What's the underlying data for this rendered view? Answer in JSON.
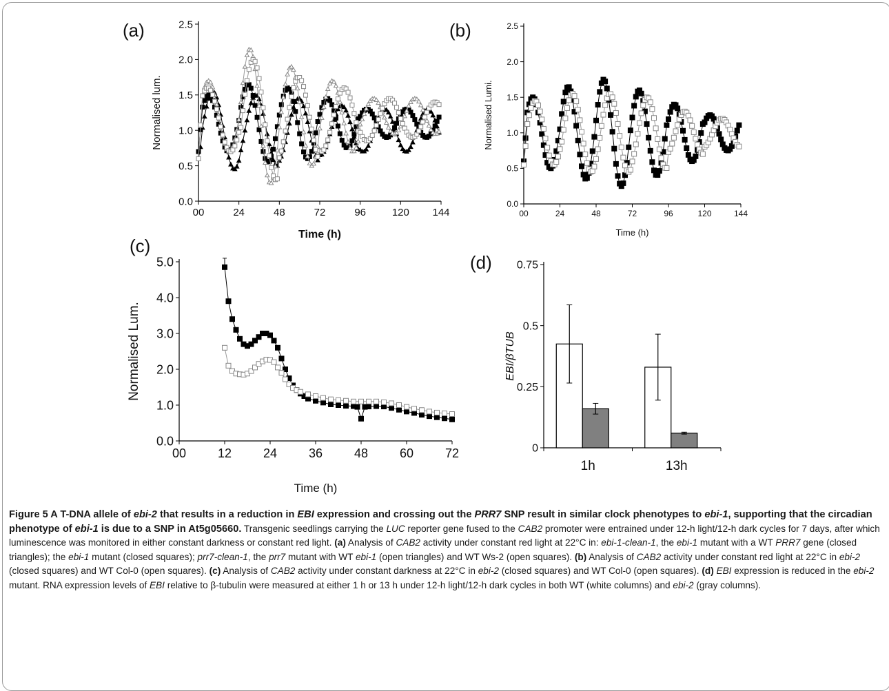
{
  "figure": {
    "caption": {
      "label": "Figure 5",
      "title_parts": [
        {
          "t": " A T-DNA allele of ",
          "i": false
        },
        {
          "t": "ebi-2",
          "i": true
        },
        {
          "t": " that results in a reduction in ",
          "i": false
        },
        {
          "t": "EBI",
          "i": true
        },
        {
          "t": " expression and crossing out the ",
          "i": false
        },
        {
          "t": "PRR7",
          "i": true
        },
        {
          "t": " SNP result in similar clock phenotypes to ",
          "i": false
        },
        {
          "t": "ebi-1",
          "i": true
        },
        {
          "t": ", supporting that the circadian phenotype of ",
          "i": false
        },
        {
          "t": "ebi-1",
          "i": true
        },
        {
          "t": " is due to a SNP in At5g05660",
          "i": false
        },
        {
          "t": ".",
          "i": false
        }
      ],
      "body_parts": [
        {
          "t": " Transgenic seedlings carrying the ",
          "i": false,
          "b": false
        },
        {
          "t": "LUC",
          "i": true,
          "b": false
        },
        {
          "t": " reporter gene fused to the ",
          "i": false,
          "b": false
        },
        {
          "t": "CAB2",
          "i": true,
          "b": false
        },
        {
          "t": " promoter were entrained under 12-h light/12-h dark cycles for 7 days, after which luminescence was monitored in either constant darkness or constant red light. ",
          "i": false,
          "b": false
        },
        {
          "t": "(a)",
          "i": false,
          "b": true
        },
        {
          "t": " Analysis of ",
          "i": false,
          "b": false
        },
        {
          "t": "CAB2",
          "i": true,
          "b": false
        },
        {
          "t": " activity under constant red light at 22°C in: ",
          "i": false,
          "b": false
        },
        {
          "t": "ebi-1-clean-1",
          "i": true,
          "b": false
        },
        {
          "t": ", the ",
          "i": false,
          "b": false
        },
        {
          "t": "ebi-1",
          "i": true,
          "b": false
        },
        {
          "t": " mutant with a WT ",
          "i": false,
          "b": false
        },
        {
          "t": "PRR7",
          "i": true,
          "b": false
        },
        {
          "t": " gene (closed triangles); the ",
          "i": false,
          "b": false
        },
        {
          "t": "ebi-1",
          "i": true,
          "b": false
        },
        {
          "t": " mutant (closed squares); ",
          "i": false,
          "b": false
        },
        {
          "t": "prr7-clean-1",
          "i": true,
          "b": false
        },
        {
          "t": ", the ",
          "i": false,
          "b": false
        },
        {
          "t": "prr7",
          "i": true,
          "b": false
        },
        {
          "t": " mutant with WT ",
          "i": false,
          "b": false
        },
        {
          "t": "ebi-1",
          "i": true,
          "b": false
        },
        {
          "t": " (open triangles) and WT Ws-2 (open squares). ",
          "i": false,
          "b": false
        },
        {
          "t": "(b)",
          "i": false,
          "b": true
        },
        {
          "t": " Analysis of ",
          "i": false,
          "b": false
        },
        {
          "t": "CAB2",
          "i": true,
          "b": false
        },
        {
          "t": " activity under constant red light at 22°C in ",
          "i": false,
          "b": false
        },
        {
          "t": "ebi-2",
          "i": true,
          "b": false
        },
        {
          "t": " (closed squares) and WT Col-0 (open squares). ",
          "i": false,
          "b": false
        },
        {
          "t": "(c)",
          "i": false,
          "b": true
        },
        {
          "t": " Analysis of ",
          "i": false,
          "b": false
        },
        {
          "t": "CAB2",
          "i": true,
          "b": false
        },
        {
          "t": " activity under constant darkness at 22°C in ",
          "i": false,
          "b": false
        },
        {
          "t": "ebi-2",
          "i": true,
          "b": false
        },
        {
          "t": " (closed squares) and WT Col-0 (open squares). ",
          "i": false,
          "b": false
        },
        {
          "t": "(d)",
          "i": false,
          "b": true
        },
        {
          "t": " ",
          "i": false,
          "b": false
        },
        {
          "t": "EBI",
          "i": true,
          "b": false
        },
        {
          "t": " expression is reduced in the ",
          "i": false,
          "b": false
        },
        {
          "t": "ebi-2",
          "i": true,
          "b": false
        },
        {
          "t": " mutant. RNA expression levels of ",
          "i": false,
          "b": false
        },
        {
          "t": "EBI",
          "i": true,
          "b": false
        },
        {
          "t": " relative to β-tubulin were measured at either 1 h or 13 h under 12-h light/12-h dark cycles in both WT (white columns) and ",
          "i": false,
          "b": false
        },
        {
          "t": "ebi-2",
          "i": true,
          "b": false
        },
        {
          "t": " (gray columns).",
          "i": false,
          "b": false
        }
      ]
    }
  },
  "chart_data": [
    {
      "panel": "(a)",
      "type": "scatter",
      "ylabel": "Normalised lum.",
      "xlabel": "Time (h)",
      "xticks": [
        "00",
        "24",
        "48",
        "72",
        "96",
        "120",
        "144"
      ],
      "yticks": [
        "0.0",
        "0.5",
        "1.0",
        "1.5",
        "2.0",
        "2.5"
      ],
      "xlim": [
        0,
        144
      ],
      "ylim": [
        0,
        2.5
      ],
      "series": [
        {
          "marker": "closed-triangle",
          "period": 25.5,
          "phase": 8.5,
          "base": 1.0,
          "amp": [
            0.55,
            0.5,
            0.45,
            0.35,
            0.3,
            0.3
          ],
          "start": 0.6
        },
        {
          "marker": "closed-square",
          "period": 23.5,
          "phase": 6.0,
          "base": 1.1,
          "amp": [
            0.4,
            0.55,
            0.5,
            0.35,
            0.2,
            0.2
          ],
          "start": 0.7
        },
        {
          "marker": "open-triangle",
          "period": 24.5,
          "phase": 6.0,
          "base": 1.2,
          "amp": [
            0.5,
            0.95,
            0.7,
            0.5,
            0.25,
            0.25
          ],
          "start": 0.6
        },
        {
          "marker": "open-square",
          "period": 27.0,
          "phase": 5.5,
          "base": 1.15,
          "amp": [
            0.45,
            0.85,
            0.6,
            0.45,
            0.3,
            0.25
          ],
          "start": 0.6
        }
      ]
    },
    {
      "panel": "(b)",
      "type": "scatter",
      "ylabel": "Normalised Lumi.",
      "xlabel": "Time (h)",
      "xticks": [
        "00",
        "24",
        "48",
        "72",
        "96",
        "120",
        "144"
      ],
      "yticks": [
        "0.0",
        "0.5",
        "1.0",
        "1.5",
        "2.0",
        "2.5"
      ],
      "xlim": [
        0,
        144
      ],
      "ylim": [
        0,
        2.5
      ],
      "series": [
        {
          "marker": "closed-square",
          "period": 23.5,
          "phase": 6.0,
          "base": 1.0,
          "amp": [
            0.5,
            0.65,
            0.75,
            0.6,
            0.4,
            0.25
          ],
          "start": 0.6
        },
        {
          "marker": "open-square",
          "period": 24.8,
          "phase": 7.5,
          "base": 1.0,
          "amp": [
            0.45,
            0.55,
            0.55,
            0.5,
            0.3,
            0.2
          ],
          "start": 0.55
        }
      ]
    },
    {
      "panel": "(c)",
      "type": "scatter",
      "ylabel": "Normalised Lum.",
      "xlabel": "Time (h)",
      "xticks": [
        "00",
        "12",
        "24",
        "36",
        "48",
        "60",
        "72"
      ],
      "yticks": [
        "0.0",
        "1.0",
        "2.0",
        "3.0",
        "4.0",
        "5.0"
      ],
      "xlim": [
        0,
        72
      ],
      "ylim": [
        0,
        5.0
      ],
      "series": [
        {
          "marker": "closed-square",
          "points": [
            [
              12,
              4.85
            ],
            [
              13,
              3.9
            ],
            [
              14,
              3.4
            ],
            [
              15,
              3.1
            ],
            [
              16,
              2.85
            ],
            [
              17,
              2.7
            ],
            [
              18,
              2.65
            ],
            [
              19,
              2.7
            ],
            [
              20,
              2.8
            ],
            [
              21,
              2.9
            ],
            [
              22,
              3.0
            ],
            [
              23,
              3.0
            ],
            [
              24,
              2.95
            ],
            [
              25,
              2.8
            ],
            [
              26,
              2.6
            ],
            [
              27,
              2.3
            ],
            [
              28,
              2.0
            ],
            [
              29,
              1.75
            ],
            [
              30,
              1.55
            ],
            [
              31,
              1.42
            ],
            [
              32,
              1.32
            ],
            [
              33,
              1.25
            ],
            [
              34,
              1.18
            ],
            [
              36,
              1.12
            ],
            [
              38,
              1.07
            ],
            [
              40,
              1.02
            ],
            [
              42,
              1.0
            ],
            [
              44,
              0.98
            ],
            [
              46,
              0.97
            ],
            [
              47,
              0.95
            ],
            [
              48,
              0.62
            ],
            [
              49,
              0.95
            ],
            [
              50,
              0.96
            ],
            [
              52,
              0.97
            ],
            [
              54,
              0.96
            ],
            [
              56,
              0.92
            ],
            [
              58,
              0.87
            ],
            [
              60,
              0.82
            ],
            [
              62,
              0.78
            ],
            [
              64,
              0.73
            ],
            [
              66,
              0.69
            ],
            [
              68,
              0.66
            ],
            [
              70,
              0.63
            ],
            [
              72,
              0.6
            ]
          ],
          "error": {
            "x": 12,
            "y": 4.85,
            "hi": 5.1
          }
        },
        {
          "marker": "open-square",
          "points": [
            [
              12,
              2.6
            ],
            [
              13,
              2.1
            ],
            [
              14,
              1.95
            ],
            [
              15,
              1.88
            ],
            [
              16,
              1.86
            ],
            [
              17,
              1.85
            ],
            [
              18,
              1.88
            ],
            [
              19,
              1.95
            ],
            [
              20,
              2.05
            ],
            [
              21,
              2.15
            ],
            [
              22,
              2.22
            ],
            [
              23,
              2.27
            ],
            [
              24,
              2.26
            ],
            [
              25,
              2.2
            ],
            [
              26,
              2.05
            ],
            [
              27,
              1.9
            ],
            [
              28,
              1.72
            ],
            [
              29,
              1.58
            ],
            [
              30,
              1.48
            ],
            [
              31,
              1.42
            ],
            [
              32,
              1.37
            ],
            [
              34,
              1.3
            ],
            [
              36,
              1.25
            ],
            [
              38,
              1.2
            ],
            [
              40,
              1.16
            ],
            [
              42,
              1.14
            ],
            [
              44,
              1.12
            ],
            [
              46,
              1.1
            ],
            [
              48,
              1.1
            ],
            [
              50,
              1.1
            ],
            [
              52,
              1.1
            ],
            [
              54,
              1.08
            ],
            [
              56,
              1.05
            ],
            [
              58,
              1.0
            ],
            [
              60,
              0.95
            ],
            [
              62,
              0.9
            ],
            [
              64,
              0.86
            ],
            [
              66,
              0.82
            ],
            [
              68,
              0.79
            ],
            [
              70,
              0.77
            ],
            [
              72,
              0.75
            ]
          ]
        }
      ]
    },
    {
      "panel": "(d)",
      "type": "bar",
      "ylabel": "EBI/βTUB",
      "categories": [
        "1h",
        "13h"
      ],
      "yticks": [
        "0",
        "0.25",
        "0.5",
        "0.75"
      ],
      "ylim": [
        0,
        0.75
      ],
      "series": [
        {
          "color": "#ffffff",
          "values": [
            0.425,
            0.33
          ],
          "err": [
            0.16,
            0.135
          ]
        },
        {
          "color": "#808080",
          "values": [
            0.16,
            0.06
          ],
          "err": [
            0.022,
            0.004
          ]
        }
      ]
    }
  ]
}
